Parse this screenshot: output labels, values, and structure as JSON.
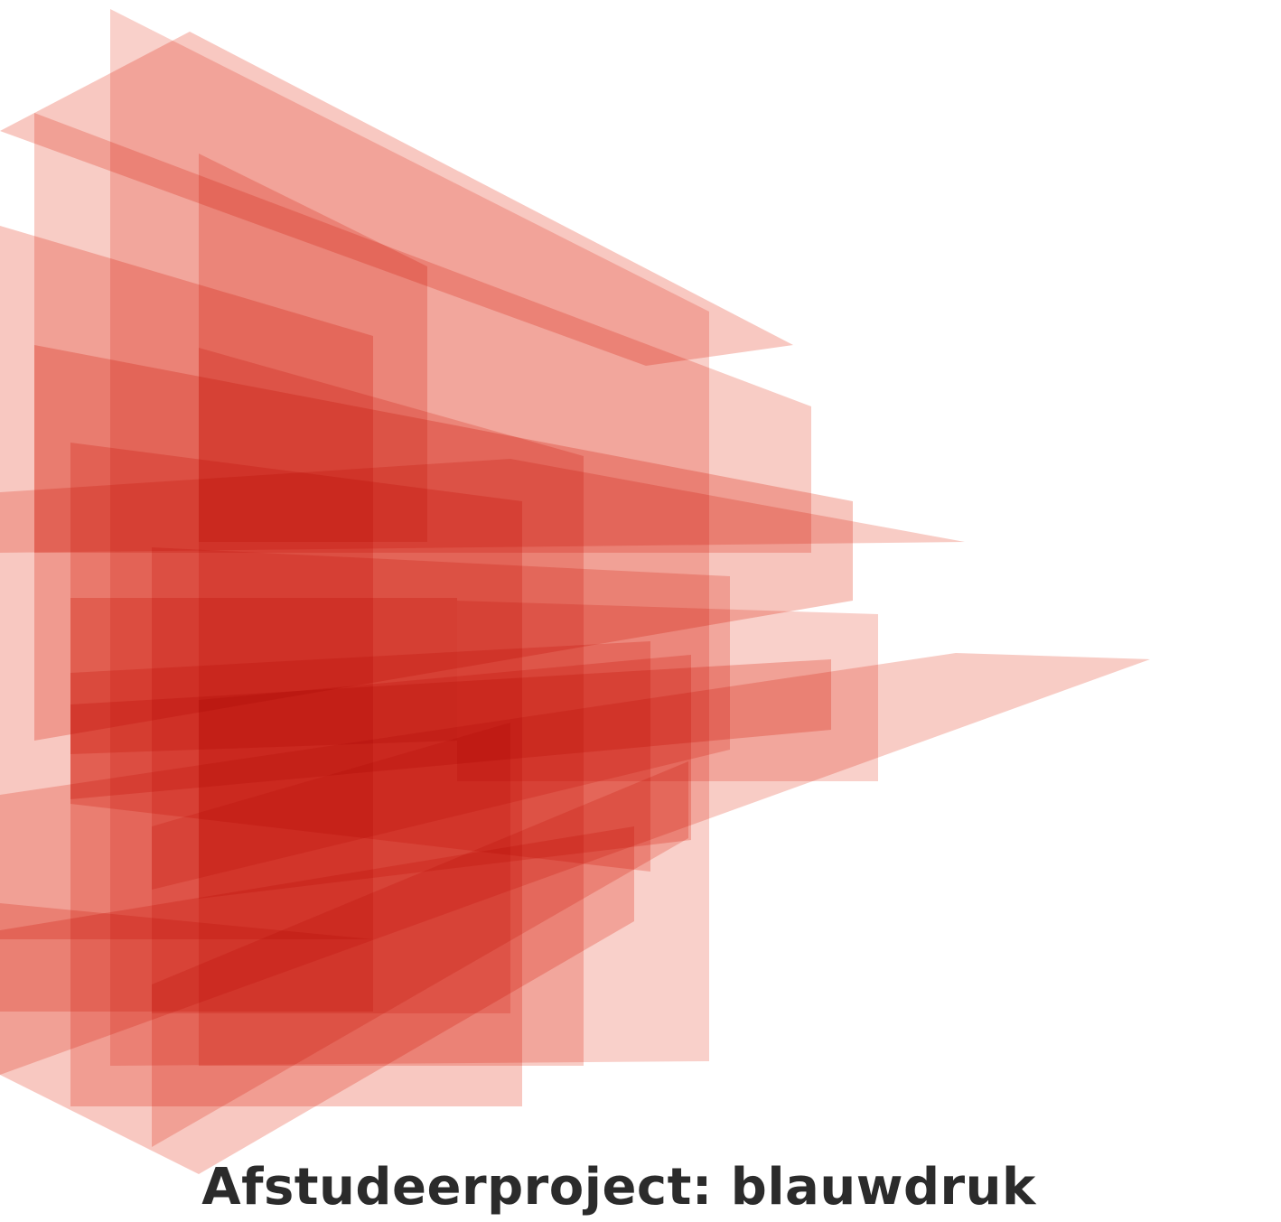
{
  "poster": {
    "title": "Afstudeerproject: blauwdruk"
  },
  "colors": {
    "shape_fill": "#e8553f",
    "text": "#2b2b2b",
    "background": "#ffffff"
  }
}
